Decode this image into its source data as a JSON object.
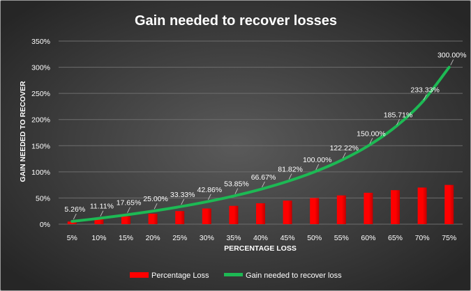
{
  "chart_data": {
    "type": "bar",
    "title": "Gain needed to recover losses",
    "xlabel": "PERCENTAGE LOSS",
    "ylabel": "GAIN NEEDED TO RECOVER",
    "ylim": [
      0,
      350
    ],
    "yticks": [
      "0%",
      "50%",
      "100%",
      "150%",
      "200%",
      "250%",
      "300%",
      "350%"
    ],
    "ytick_values": [
      0,
      50,
      100,
      150,
      200,
      250,
      300,
      350
    ],
    "grid": true,
    "legend_position": "bottom",
    "categories": [
      "5%",
      "10%",
      "15%",
      "20%",
      "25%",
      "30%",
      "35%",
      "40%",
      "45%",
      "50%",
      "55%",
      "60%",
      "65%",
      "70%",
      "75%"
    ],
    "series": [
      {
        "name": "Percentage Loss",
        "type": "bar",
        "color": "#ff0000",
        "values": [
          5,
          10,
          15,
          20,
          25,
          30,
          35,
          40,
          45,
          50,
          55,
          60,
          65,
          70,
          75
        ]
      },
      {
        "name": "Gain needed to recover loss",
        "type": "line",
        "color": "#1db954",
        "values": [
          5.26,
          11.11,
          17.65,
          25.0,
          33.33,
          42.86,
          53.85,
          66.67,
          81.82,
          100.0,
          122.22,
          150.0,
          185.71,
          233.33,
          300.0
        ],
        "labels": [
          "5.26%",
          "11.11%",
          "17.65%",
          "25.00%",
          "33.33%",
          "42.86%",
          "53.85%",
          "66.67%",
          "81.82%",
          "100.00%",
          "122.22%",
          "150.00%",
          "185.71%",
          "233.33%",
          "300.00%"
        ]
      }
    ]
  },
  "colors": {
    "background_center": "#5a5a5a",
    "background_edge": "#262626",
    "text": "#ffffff",
    "gridline": "#6e6e6e"
  }
}
